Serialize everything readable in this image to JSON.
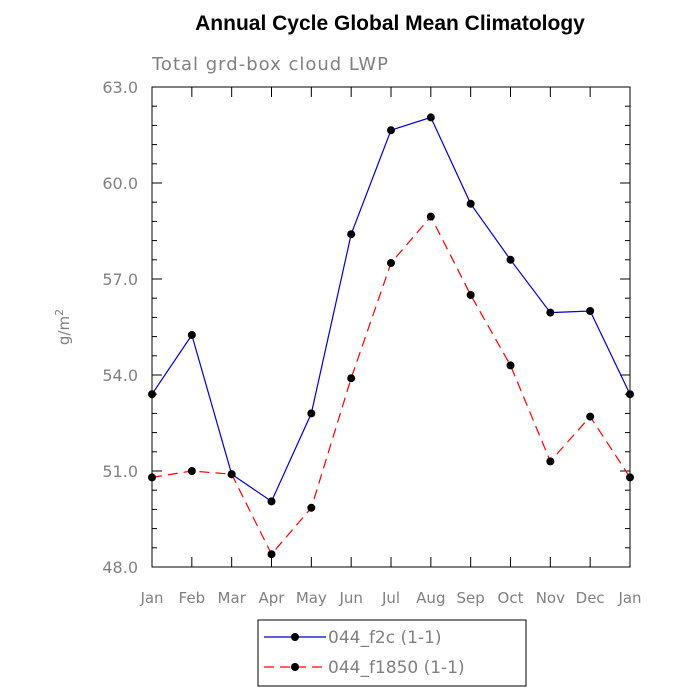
{
  "chart_data": {
    "type": "line",
    "title": "Annual Cycle Global Mean Climatology",
    "subtitle": "Total grd-box cloud LWP",
    "xlabel": "",
    "ylabel": "g/m",
    "ylabel_superscript": "2",
    "categories": [
      "Jan",
      "Feb",
      "Mar",
      "Apr",
      "May",
      "Jun",
      "Jul",
      "Aug",
      "Sep",
      "Oct",
      "Nov",
      "Dec",
      "Jan"
    ],
    "ylim": [
      48.0,
      63.0
    ],
    "yticks": [
      "48.0",
      "51.0",
      "54.0",
      "57.0",
      "60.0",
      "63.0"
    ],
    "series": [
      {
        "name": "044_f2c (1-1)",
        "color": "#0000cc",
        "dash": "solid",
        "marker": "filled-circle",
        "values": [
          53.4,
          55.25,
          50.9,
          50.05,
          52.8,
          58.4,
          61.65,
          62.05,
          59.35,
          57.6,
          55.95,
          56.0,
          53.4
        ]
      },
      {
        "name": "044_f1850 (1-1)",
        "color": "#ff0000",
        "dash": "dashed",
        "marker": "filled-circle",
        "values": [
          50.8,
          51.0,
          50.9,
          48.4,
          49.85,
          53.9,
          57.5,
          58.95,
          56.5,
          54.3,
          51.3,
          52.7,
          50.8
        ]
      }
    ],
    "grid": false,
    "legend_position": "bottom-center"
  }
}
